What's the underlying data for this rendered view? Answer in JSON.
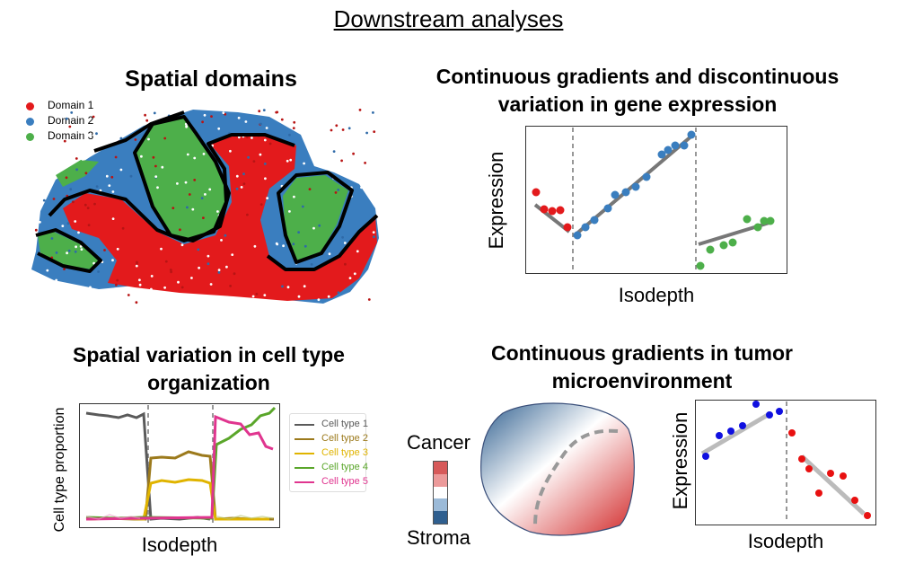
{
  "page_title": "Downstream analyses",
  "panel_domains": {
    "title": "Spatial domains",
    "legend": [
      {
        "label": "Domain 1",
        "color": "#e31a1c"
      },
      {
        "label": "Domain 2",
        "color": "#3a7ebf"
      },
      {
        "label": "Domain 3",
        "color": "#4daf4a"
      }
    ]
  },
  "panel_gene": {
    "title_line1": "Continuous gradients and discontinuous",
    "title_line2": "variation in gene expression",
    "xlabel": "Isodepth",
    "ylabel": "Expression"
  },
  "panel_celltype": {
    "title_line1": "Spatial variation in cell type",
    "title_line2": "organization",
    "xlabel": "Isodepth",
    "ylabel": "Cell type proportion",
    "legend": [
      {
        "label": "Cell type 1",
        "color": "#5a5a5a"
      },
      {
        "label": "Cell type 2",
        "color": "#9c7a1c"
      },
      {
        "label": "Cell type 3",
        "color": "#e0b400"
      },
      {
        "label": "Cell type 4",
        "color": "#5aa62a"
      },
      {
        "label": "Cell type 5",
        "color": "#e0358f"
      }
    ]
  },
  "panel_tumor": {
    "title_line1": "Continuous gradients in tumor",
    "title_line2": "microenvironment",
    "colorbar_top": "Cancer",
    "colorbar_bottom": "Stroma",
    "xlabel": "Isodepth",
    "ylabel": "Expression"
  },
  "colors": {
    "domain1": "#e31a1c",
    "domain2": "#3a7ebf",
    "domain3": "#4daf4a",
    "fit_line": "#777777",
    "tumor_red": "#d53a3a",
    "stroma_blue": "#2f5f8f"
  }
}
